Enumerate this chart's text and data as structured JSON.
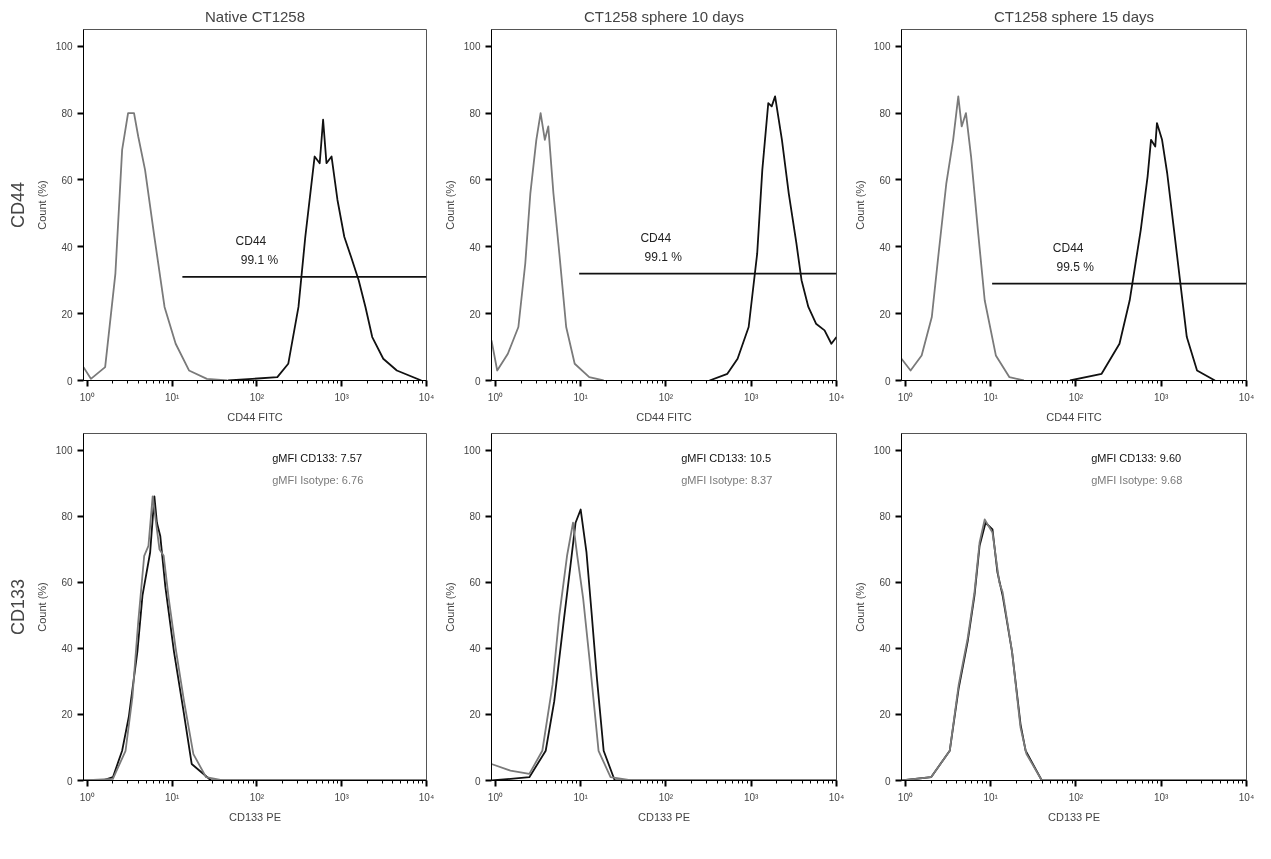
{
  "chart_data": [
    {
      "type": "line",
      "title": "Native CT1258",
      "xlabel": "CD44 FITC",
      "ylabel": "Count (%)",
      "log": "x",
      "xlim": [
        0.9,
        10000
      ],
      "ylim": [
        0,
        105
      ],
      "xticks": [
        {
          "value": 1,
          "label": "10⁰"
        },
        {
          "value": 10,
          "label": "10¹"
        },
        {
          "value": 100,
          "label": "10²"
        },
        {
          "value": 1000,
          "label": "10³"
        },
        {
          "value": 10000,
          "label": "10⁴"
        }
      ],
      "yticks": [
        0,
        20,
        40,
        60,
        80,
        100
      ],
      "grid": false,
      "legend": false,
      "annotations": [
        "CD44",
        {
          "text": "CD44",
          "x": 85,
          "y": 31
        },
        {
          "text": "99.1 %",
          "x": 107,
          "y": 31
        }
      ],
      "series": [
        {
          "color": "#7a7a7a",
          "x": [
            0.9,
            1.1,
            1.62,
            2.14,
            2.57,
            3.02,
            3.55,
            3.98,
            4.79,
            6.17,
            8.13,
            11.0,
            15.8,
            25.7,
            45
          ],
          "values": [
            4,
            0.5,
            4,
            32,
            69,
            80,
            80,
            73,
            63,
            43,
            22,
            11,
            3,
            0.5,
            0
          ]
        },
        {
          "color": "#111111",
          "x": [
            45.7,
            174,
            234,
            309,
            372,
            479,
            550,
            603,
            661,
            759,
            891,
            1072,
            1288,
            1585,
            1905,
            2291,
            3090,
            4467,
            8710
          ],
          "values": [
            0,
            1,
            5,
            22,
            43,
            67,
            65,
            78,
            65,
            67,
            54,
            43,
            37,
            30,
            22,
            13,
            6.5,
            3,
            0
          ]
        },
        {
          "type": "line",
          "color": "#111111",
          "x": [
            13.2,
            10000
          ],
          "values": [
            31,
            31
          ]
        }
      ]
    },
    {
      "type": "line",
      "title": "CT1258 sphere 10 days",
      "xlabel": "CD44 FITC",
      "ylabel": "Count (%)",
      "log": "x",
      "xlim": [
        0.9,
        10000
      ],
      "ylim": [
        0,
        105
      ],
      "xticks": [
        {
          "value": 1,
          "label": "10⁰"
        },
        {
          "value": 10,
          "label": "10¹"
        },
        {
          "value": 100,
          "label": "10²"
        },
        {
          "value": 1000,
          "label": "10³"
        },
        {
          "value": 10000,
          "label": "10⁴"
        }
      ],
      "yticks": [
        0,
        20,
        40,
        60,
        80,
        100
      ],
      "grid": false,
      "legend": false,
      "annotations": [
        {
          "text": "CD44",
          "x": 76,
          "y": 32
        },
        {
          "text": "99.1 %",
          "x": 93,
          "y": 32
        }
      ],
      "series": [
        {
          "color": "#7a7a7a",
          "x": [
            0.9,
            1.05,
            1.4,
            1.86,
            2.24,
            2.57,
            3.02,
            3.39,
            3.8,
            4.17,
            4.79,
            5.62,
            6.76,
            8.51,
            12.6,
            18.6
          ],
          "values": [
            12,
            3,
            8,
            16,
            35,
            56,
            72,
            80,
            72,
            76,
            56,
            38,
            16,
            5,
            1,
            0
          ]
        },
        {
          "color": "#111111",
          "x": [
            324,
            525,
            692,
            933,
            1175,
            1349,
            1585,
            1738,
            1905,
            2291,
            2754,
            3388,
            3890,
            4677,
            5754,
            7244,
            8710,
            10000
          ],
          "values": [
            0,
            2,
            6.5,
            16,
            38,
            63,
            83,
            82,
            85,
            72,
            56,
            41,
            30,
            22,
            17,
            15,
            11,
            13
          ]
        },
        {
          "type": "line",
          "color": "#111111",
          "x": [
            9.6,
            10000
          ],
          "values": [
            32,
            32
          ]
        }
      ]
    },
    {
      "type": "line",
      "title": "CT1258 sphere 15 days",
      "xlabel": "CD44 FITC",
      "ylabel": "Count (%)",
      "log": "x",
      "xlim": [
        0.9,
        10000
      ],
      "ylim": [
        0,
        105
      ],
      "xticks": [
        {
          "value": 1,
          "label": "10⁰"
        },
        {
          "value": 10,
          "label": "10¹"
        },
        {
          "value": 100,
          "label": "10²"
        },
        {
          "value": 1000,
          "label": "10³"
        },
        {
          "value": 10000,
          "label": "10⁴"
        }
      ],
      "yticks": [
        0,
        20,
        40,
        60,
        80,
        100
      ],
      "grid": false,
      "legend": false,
      "annotations": [
        {
          "text": "CD44",
          "x": 81,
          "y": 29
        },
        {
          "text": "99.5 %",
          "x": 98,
          "y": 29
        }
      ],
      "series": [
        {
          "color": "#7a7a7a",
          "x": [
            0.9,
            1.15,
            1.55,
            2.04,
            2.45,
            3.02,
            3.63,
            4.17,
            4.57,
            5.13,
            5.89,
            7.08,
            8.51,
            11.5,
            16.6,
            24.5
          ],
          "values": [
            6.5,
            3,
            7.5,
            19,
            38,
            59,
            72,
            85,
            76,
            80,
            67,
            45,
            24,
            7.5,
            1,
            0
          ]
        },
        {
          "color": "#111111",
          "x": [
            85,
            200,
            324,
            427,
            575,
            692,
            759,
            851,
            891,
            1023,
            1175,
            1413,
            1660,
            1995,
            2630,
            4266
          ],
          "values": [
            0,
            2,
            11,
            24,
            45,
            61,
            72,
            70,
            77,
            72,
            62,
            45,
            30,
            13,
            3,
            0
          ]
        },
        {
          "type": "line",
          "color": "#111111",
          "x": [
            10.4,
            10000
          ],
          "values": [
            29,
            29
          ]
        }
      ]
    },
    {
      "type": "line",
      "xlabel": "CD133 PE",
      "ylabel": "Count (%)",
      "log": "x",
      "xlim": [
        0.9,
        10000
      ],
      "ylim": [
        0,
        105
      ],
      "xticks": [
        {
          "value": 1,
          "label": "10⁰"
        },
        {
          "value": 10,
          "label": "10¹"
        },
        {
          "value": 100,
          "label": "10²"
        },
        {
          "value": 1000,
          "label": "10³"
        },
        {
          "value": 10000,
          "label": "10⁴"
        }
      ],
      "yticks": [
        0,
        20,
        40,
        60,
        80,
        100
      ],
      "grid": false,
      "legend": "top right",
      "annotations": [
        "CD133"
      ],
      "series": [
        {
          "name": "gMFI CD133: 7.57",
          "color": "#111111",
          "x": [
            0.9,
            1.5,
            2.0,
            2.57,
            3.09,
            3.89,
            4.47,
            5.5,
            6.17,
            6.61,
            7.24,
            8.32,
            10.5,
            13.5,
            17.0,
            28.8,
            10000
          ],
          "values": [
            0,
            0,
            1,
            9,
            19.5,
            39,
            56,
            69,
            86,
            78,
            74,
            58.5,
            39,
            21.6,
            5,
            0,
            0
          ]
        },
        {
          "name": "gMFI Isotype: 6.76",
          "color": "#7a7a7a",
          "x": [
            0.9,
            2.0,
            2.82,
            3.39,
            3.98,
            4.68,
            5.25,
            5.89,
            6.31,
            7.08,
            7.94,
            9.12,
            11.0,
            13.8,
            17.8,
            25.1,
            39.8,
            10000
          ],
          "values": [
            0,
            0.5,
            9,
            25,
            48,
            68,
            71,
            86,
            80,
            70,
            68,
            55,
            40,
            24,
            8,
            1,
            0,
            0
          ]
        }
      ]
    },
    {
      "type": "line",
      "xlabel": "CD133 PE",
      "ylabel": "Count (%)",
      "log": "x",
      "xlim": [
        0.9,
        10000
      ],
      "ylim": [
        0,
        105
      ],
      "xticks": [
        {
          "value": 1,
          "label": "10⁰"
        },
        {
          "value": 10,
          "label": "10¹"
        },
        {
          "value": 100,
          "label": "10²"
        },
        {
          "value": 1000,
          "label": "10³"
        },
        {
          "value": 10000,
          "label": "10⁴"
        }
      ],
      "yticks": [
        0,
        20,
        40,
        60,
        80,
        100
      ],
      "grid": false,
      "legend": "top right",
      "series": [
        {
          "name": "gMFI CD133: 10.5",
          "color": "#111111",
          "x": [
            0.9,
            2.5,
            3.89,
            4.9,
            6.31,
            7.59,
            8.71,
            10.0,
            11.7,
            13.5,
            15.5,
            18.6,
            25.1,
            10000
          ],
          "values": [
            0,
            1,
            9,
            24,
            48,
            65,
            78,
            82,
            69,
            50,
            31,
            9,
            0,
            0
          ]
        },
        {
          "name": "gMFI Isotype: 8.37",
          "color": "#7a7a7a",
          "x": [
            0.9,
            1.5,
            2.5,
            3.55,
            4.68,
            5.62,
            6.92,
            8.13,
            9.12,
            10.7,
            12.9,
            16.2,
            22.4,
            39.8,
            10000
          ],
          "values": [
            5,
            3,
            2,
            9,
            29,
            50,
            68,
            78,
            68,
            55,
            35,
            9,
            1,
            0,
            0
          ]
        }
      ]
    },
    {
      "type": "line",
      "xlabel": "CD133 PE",
      "ylabel": "Count (%)",
      "log": "x",
      "xlim": [
        0.9,
        10000
      ],
      "ylim": [
        0,
        105
      ],
      "xticks": [
        {
          "value": 1,
          "label": "10⁰"
        },
        {
          "value": 10,
          "label": "10¹"
        },
        {
          "value": 100,
          "label": "10²"
        },
        {
          "value": 1000,
          "label": "10³"
        },
        {
          "value": 10000,
          "label": "10⁴"
        }
      ],
      "yticks": [
        0,
        20,
        40,
        60,
        80,
        100
      ],
      "grid": false,
      "legend": "top right",
      "series": [
        {
          "name": "gMFI CD133: 9.60",
          "color": "#111111",
          "x": [
            0.9,
            2.0,
            3.31,
            4.22,
            5.37,
            6.46,
            7.41,
            8.71,
            10.5,
            12.0,
            13.8,
            17.8,
            22.4,
            25.7,
            39.8,
            10000
          ],
          "values": [
            0,
            1,
            9,
            28,
            42,
            56,
            71,
            78,
            76,
            63,
            56,
            39,
            17,
            9,
            0,
            0
          ]
        },
        {
          "name": "gMFI Isotype: 9.68",
          "color": "#7a7a7a",
          "x": [
            0.9,
            2.0,
            3.31,
            4.22,
            5.37,
            6.46,
            7.41,
            8.51,
            10.5,
            12.6,
            13.8,
            17.8,
            22.4,
            26.3,
            39.8,
            10000
          ],
          "values": [
            0,
            1,
            9,
            29,
            43,
            57,
            72,
            79,
            75,
            60,
            57,
            39,
            16,
            8,
            0,
            0
          ]
        }
      ]
    }
  ]
}
